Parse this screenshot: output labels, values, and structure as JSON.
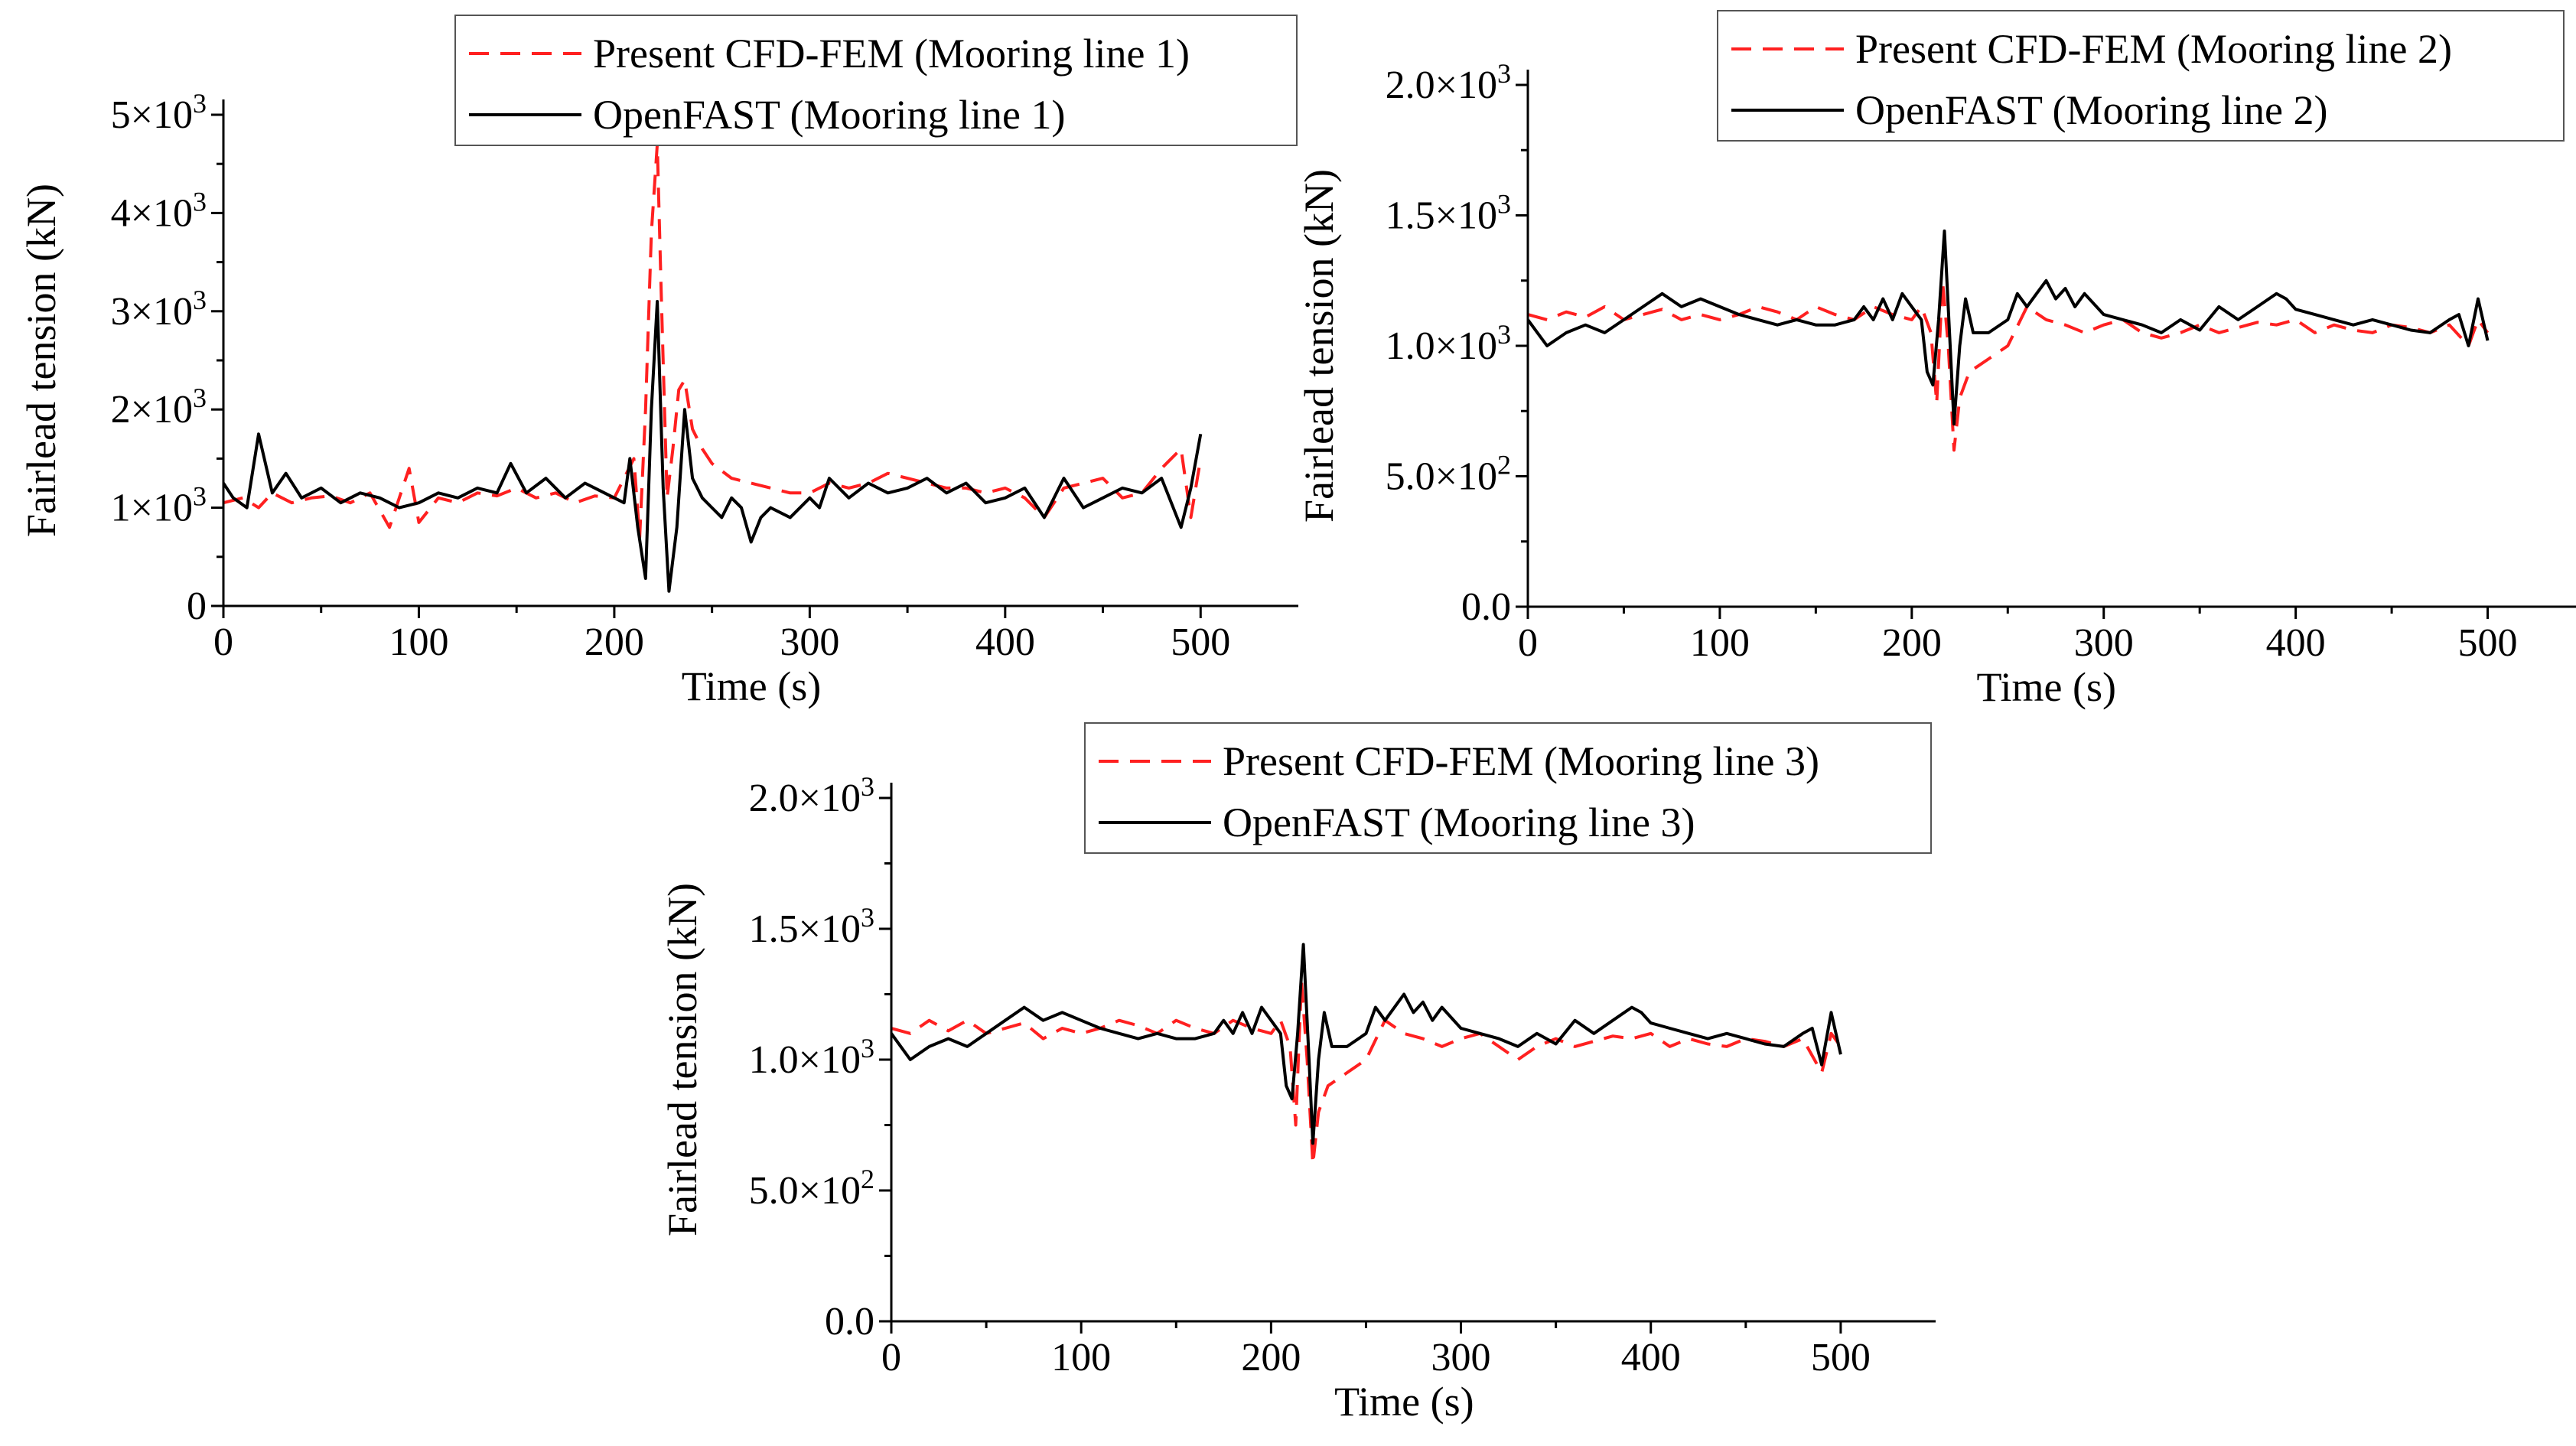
{
  "figure": {
    "background": "#ffffff",
    "series_styles": {
      "cfd": {
        "color": "#ff2020",
        "dash": "dashed"
      },
      "openfast": {
        "color": "#000000",
        "dash": "solid"
      }
    }
  },
  "chart_data": [
    {
      "type": "line",
      "id": "panel-1",
      "xlabel": "Time (s)",
      "ylabel": "Fairlead tension (kN)",
      "xlim": [
        0,
        550
      ],
      "ylim": [
        0,
        5000
      ],
      "x_ticks": [
        0,
        100,
        200,
        300,
        400,
        500
      ],
      "y_ticks": [
        {
          "value": 0,
          "mant": "0",
          "exp": ""
        },
        {
          "value": 1000,
          "mant": "1×10",
          "exp": "3"
        },
        {
          "value": 2000,
          "mant": "2×10",
          "exp": "3"
        },
        {
          "value": 3000,
          "mant": "3×10",
          "exp": "3"
        },
        {
          "value": 4000,
          "mant": "4×10",
          "exp": "3"
        },
        {
          "value": 5000,
          "mant": "5×10",
          "exp": "3"
        }
      ],
      "legend_position": "top-right",
      "series": [
        {
          "name": "Present CFD-FEM (Mooring line 1)",
          "style": "cfd",
          "x": [
            0,
            10,
            18,
            25,
            35,
            45,
            55,
            65,
            75,
            85,
            95,
            100,
            110,
            120,
            130,
            140,
            150,
            160,
            170,
            180,
            190,
            200,
            205,
            210,
            213,
            216,
            219,
            222,
            224,
            227,
            230,
            233,
            236,
            240,
            245,
            250,
            260,
            270,
            280,
            290,
            300,
            310,
            320,
            330,
            340,
            350,
            360,
            370,
            380,
            390,
            400,
            410,
            420,
            430,
            440,
            450,
            460,
            470,
            480,
            490,
            495,
            500
          ],
          "y": [
            1050,
            1100,
            1000,
            1150,
            1050,
            1100,
            1120,
            1050,
            1150,
            800,
            1400,
            850,
            1100,
            1050,
            1150,
            1120,
            1200,
            1100,
            1150,
            1050,
            1120,
            1100,
            1300,
            1500,
            700,
            2000,
            3800,
            4700,
            3200,
            1100,
            1600,
            2200,
            2300,
            1800,
            1600,
            1450,
            1300,
            1250,
            1200,
            1150,
            1150,
            1250,
            1200,
            1250,
            1350,
            1300,
            1250,
            1200,
            1200,
            1150,
            1200,
            1100,
            900,
            1200,
            1250,
            1300,
            1100,
            1150,
            1400,
            1600,
            900,
            1500
          ]
        },
        {
          "name": "OpenFAST (Mooring line 1)",
          "style": "openfast",
          "x": [
            0,
            5,
            12,
            18,
            25,
            32,
            40,
            50,
            60,
            70,
            80,
            90,
            100,
            110,
            120,
            130,
            140,
            147,
            155,
            165,
            175,
            185,
            195,
            205,
            208,
            212,
            216,
            219,
            222,
            225,
            228,
            232,
            236,
            240,
            245,
            250,
            255,
            260,
            265,
            270,
            275,
            280,
            290,
            300,
            305,
            310,
            320,
            330,
            340,
            350,
            360,
            370,
            380,
            390,
            400,
            410,
            420,
            430,
            440,
            450,
            460,
            470,
            480,
            485,
            490,
            495,
            500
          ],
          "y": [
            1250,
            1100,
            1000,
            1750,
            1150,
            1350,
            1100,
            1200,
            1050,
            1150,
            1100,
            1000,
            1050,
            1150,
            1100,
            1200,
            1150,
            1450,
            1150,
            1300,
            1100,
            1250,
            1150,
            1050,
            1500,
            800,
            280,
            2000,
            3100,
            1200,
            150,
            800,
            2000,
            1300,
            1100,
            1000,
            900,
            1100,
            1000,
            650,
            900,
            1000,
            900,
            1100,
            1000,
            1300,
            1100,
            1250,
            1150,
            1200,
            1300,
            1150,
            1250,
            1050,
            1100,
            1200,
            900,
            1300,
            1000,
            1100,
            1200,
            1150,
            1300,
            1050,
            800,
            1200,
            1750
          ]
        }
      ]
    },
    {
      "type": "line",
      "id": "panel-2",
      "xlabel": "Time (s)",
      "ylabel": "Fairlead tension (kN)",
      "xlim": [
        0,
        550
      ],
      "ylim": [
        0,
        2000
      ],
      "x_ticks": [
        0,
        100,
        200,
        300,
        400,
        500
      ],
      "y_ticks": [
        {
          "value": 0,
          "mant": "0.0",
          "exp": ""
        },
        {
          "value": 500,
          "mant": "5.0×10",
          "exp": "2"
        },
        {
          "value": 1000,
          "mant": "1.0×10",
          "exp": "3"
        },
        {
          "value": 1500,
          "mant": "1.5×10",
          "exp": "3"
        },
        {
          "value": 2000,
          "mant": "2.0×10",
          "exp": "3"
        }
      ],
      "legend_position": "top-right",
      "series": [
        {
          "name": "Present CFD-FEM (Mooring line 2)",
          "style": "cfd",
          "x": [
            0,
            10,
            20,
            30,
            40,
            50,
            60,
            70,
            80,
            90,
            100,
            110,
            120,
            130,
            140,
            150,
            160,
            170,
            180,
            190,
            200,
            205,
            210,
            213,
            216,
            219,
            222,
            225,
            230,
            240,
            250,
            260,
            270,
            280,
            290,
            300,
            310,
            320,
            330,
            340,
            350,
            360,
            370,
            380,
            390,
            400,
            410,
            420,
            430,
            440,
            450,
            460,
            470,
            480,
            490,
            495,
            500
          ],
          "y": [
            1120,
            1100,
            1130,
            1110,
            1150,
            1100,
            1120,
            1140,
            1100,
            1120,
            1100,
            1120,
            1150,
            1130,
            1100,
            1150,
            1120,
            1100,
            1150,
            1120,
            1100,
            1150,
            1050,
            780,
            1250,
            1000,
            600,
            800,
            900,
            950,
            1000,
            1150,
            1100,
            1080,
            1050,
            1080,
            1100,
            1050,
            1030,
            1050,
            1080,
            1050,
            1070,
            1090,
            1080,
            1100,
            1050,
            1080,
            1060,
            1050,
            1080,
            1070,
            1050,
            1080,
            1000,
            1100,
            1050
          ]
        },
        {
          "name": "OpenFAST (Mooring line 2)",
          "style": "openfast",
          "x": [
            0,
            5,
            10,
            20,
            30,
            40,
            50,
            60,
            70,
            80,
            90,
            100,
            110,
            120,
            130,
            140,
            150,
            160,
            170,
            175,
            180,
            185,
            190,
            195,
            200,
            205,
            208,
            211,
            214,
            217,
            220,
            222,
            225,
            228,
            232,
            240,
            250,
            255,
            260,
            265,
            270,
            275,
            280,
            285,
            290,
            300,
            310,
            320,
            330,
            340,
            350,
            360,
            370,
            380,
            390,
            395,
            400,
            410,
            420,
            430,
            440,
            450,
            460,
            470,
            480,
            485,
            490,
            495,
            500
          ],
          "y": [
            1100,
            1050,
            1000,
            1050,
            1080,
            1050,
            1100,
            1150,
            1200,
            1150,
            1180,
            1150,
            1120,
            1100,
            1080,
            1100,
            1080,
            1080,
            1100,
            1150,
            1100,
            1180,
            1100,
            1200,
            1150,
            1100,
            900,
            850,
            1100,
            1440,
            1000,
            700,
            1000,
            1180,
            1050,
            1050,
            1100,
            1200,
            1150,
            1200,
            1250,
            1180,
            1220,
            1150,
            1200,
            1120,
            1100,
            1080,
            1050,
            1100,
            1060,
            1150,
            1100,
            1150,
            1200,
            1180,
            1140,
            1120,
            1100,
            1080,
            1100,
            1080,
            1060,
            1050,
            1100,
            1120,
            1000,
            1180,
            1020
          ]
        }
      ]
    },
    {
      "type": "line",
      "id": "panel-3",
      "xlabel": "Time (s)",
      "ylabel": "Fairlead tension (kN)",
      "xlim": [
        0,
        550
      ],
      "ylim": [
        0,
        2000
      ],
      "x_ticks": [
        0,
        100,
        200,
        300,
        400,
        500
      ],
      "y_ticks": [
        {
          "value": 0,
          "mant": "0.0",
          "exp": ""
        },
        {
          "value": 500,
          "mant": "5.0×10",
          "exp": "2"
        },
        {
          "value": 1000,
          "mant": "1.0×10",
          "exp": "3"
        },
        {
          "value": 1500,
          "mant": "1.5×10",
          "exp": "3"
        },
        {
          "value": 2000,
          "mant": "2.0×10",
          "exp": "3"
        }
      ],
      "legend_position": "top-right",
      "series": [
        {
          "name": "Present CFD-FEM (Mooring line 3)",
          "style": "cfd",
          "x": [
            0,
            10,
            20,
            30,
            40,
            50,
            60,
            70,
            80,
            90,
            100,
            110,
            120,
            130,
            140,
            150,
            160,
            170,
            180,
            190,
            200,
            205,
            210,
            213,
            216,
            219,
            222,
            225,
            230,
            240,
            250,
            260,
            270,
            280,
            290,
            300,
            310,
            320,
            330,
            340,
            350,
            360,
            370,
            380,
            390,
            400,
            410,
            420,
            430,
            440,
            450,
            460,
            470,
            480,
            490,
            495,
            500
          ],
          "y": [
            1120,
            1100,
            1150,
            1110,
            1150,
            1100,
            1120,
            1140,
            1080,
            1120,
            1100,
            1120,
            1150,
            1130,
            1100,
            1150,
            1120,
            1100,
            1150,
            1120,
            1100,
            1150,
            1050,
            750,
            1300,
            1000,
            600,
            800,
            900,
            950,
            1000,
            1150,
            1100,
            1080,
            1050,
            1080,
            1100,
            1050,
            1000,
            1050,
            1080,
            1050,
            1070,
            1090,
            1080,
            1100,
            1050,
            1080,
            1060,
            1050,
            1080,
            1070,
            1050,
            1080,
            950,
            1100,
            1050
          ]
        },
        {
          "name": "OpenFAST (Mooring line 3)",
          "style": "openfast",
          "x": [
            0,
            5,
            10,
            20,
            30,
            40,
            50,
            60,
            70,
            80,
            90,
            100,
            110,
            120,
            130,
            140,
            150,
            160,
            170,
            175,
            180,
            185,
            190,
            195,
            200,
            205,
            208,
            211,
            214,
            217,
            220,
            222,
            225,
            228,
            232,
            240,
            250,
            255,
            260,
            265,
            270,
            275,
            280,
            285,
            290,
            300,
            310,
            320,
            330,
            340,
            350,
            360,
            370,
            380,
            390,
            395,
            400,
            410,
            420,
            430,
            440,
            450,
            460,
            470,
            480,
            485,
            490,
            495,
            500
          ],
          "y": [
            1100,
            1050,
            1000,
            1050,
            1080,
            1050,
            1100,
            1150,
            1200,
            1150,
            1180,
            1150,
            1120,
            1100,
            1080,
            1100,
            1080,
            1080,
            1100,
            1150,
            1100,
            1180,
            1100,
            1200,
            1150,
            1100,
            900,
            850,
            1100,
            1440,
            1000,
            680,
            1000,
            1180,
            1050,
            1050,
            1100,
            1200,
            1150,
            1200,
            1250,
            1180,
            1220,
            1150,
            1200,
            1120,
            1100,
            1080,
            1050,
            1100,
            1060,
            1150,
            1100,
            1150,
            1200,
            1180,
            1140,
            1120,
            1100,
            1080,
            1100,
            1080,
            1060,
            1050,
            1100,
            1120,
            980,
            1180,
            1020
          ]
        }
      ]
    }
  ]
}
